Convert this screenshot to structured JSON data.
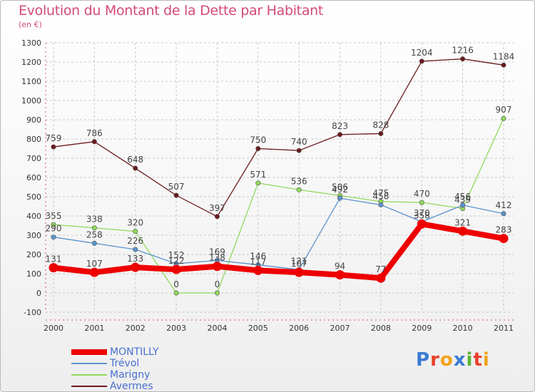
{
  "header": {
    "title": "Evolution du Montant de la Dette par Habitant",
    "subtitle": "(en €)"
  },
  "logo": {
    "text": "Proxiti",
    "letters": [
      {
        "ch": "P",
        "color": "#3a7bd5"
      },
      {
        "ch": "r",
        "color": "#e8402b"
      },
      {
        "ch": "o",
        "color": "#f2a21b"
      },
      {
        "ch": "x",
        "color": "#3a7bd5"
      },
      {
        "ch": "i",
        "color": "#5bb531"
      },
      {
        "ch": "t",
        "color": "#e8402b"
      },
      {
        "ch": "i",
        "color": "#f2a21b"
      }
    ]
  },
  "chart_data": {
    "type": "line",
    "title": "Evolution du Montant de la Dette par Habitant",
    "subtitle": "(en €)",
    "x": [
      "2000",
      "2001",
      "2002",
      "2003",
      "2004",
      "2005",
      "2006",
      "2007",
      "2008",
      "2009",
      "2010",
      "2011"
    ],
    "ylim": [
      -100,
      1300
    ],
    "yticks": [
      -100,
      0,
      100,
      200,
      300,
      400,
      500,
      600,
      700,
      800,
      900,
      1000,
      1100,
      1200,
      1300
    ],
    "grid": true,
    "legend_position": "bottom-left",
    "series": [
      {
        "name": "Avermes",
        "color": "#6b1a1e",
        "values": [
          759,
          786,
          648,
          507,
          397,
          750,
          740,
          823,
          828,
          1204,
          1216,
          1184
        ]
      },
      {
        "name": "Marigny",
        "color": "#8fd95a",
        "values": [
          355,
          338,
          320,
          0,
          0,
          571,
          536,
          506,
          475,
          470,
          439,
          907
        ]
      },
      {
        "name": "Trévol",
        "color": "#5a93cf",
        "values": [
          290,
          258,
          226,
          152,
          169,
          146,
          121,
          492,
          458,
          370,
          456,
          412
        ]
      },
      {
        "name": "MONTILLY",
        "color": "#ee0000",
        "values": [
          131,
          107,
          133,
          122,
          138,
          117,
          107,
          94,
          77,
          358,
          321,
          283
        ]
      }
    ]
  }
}
